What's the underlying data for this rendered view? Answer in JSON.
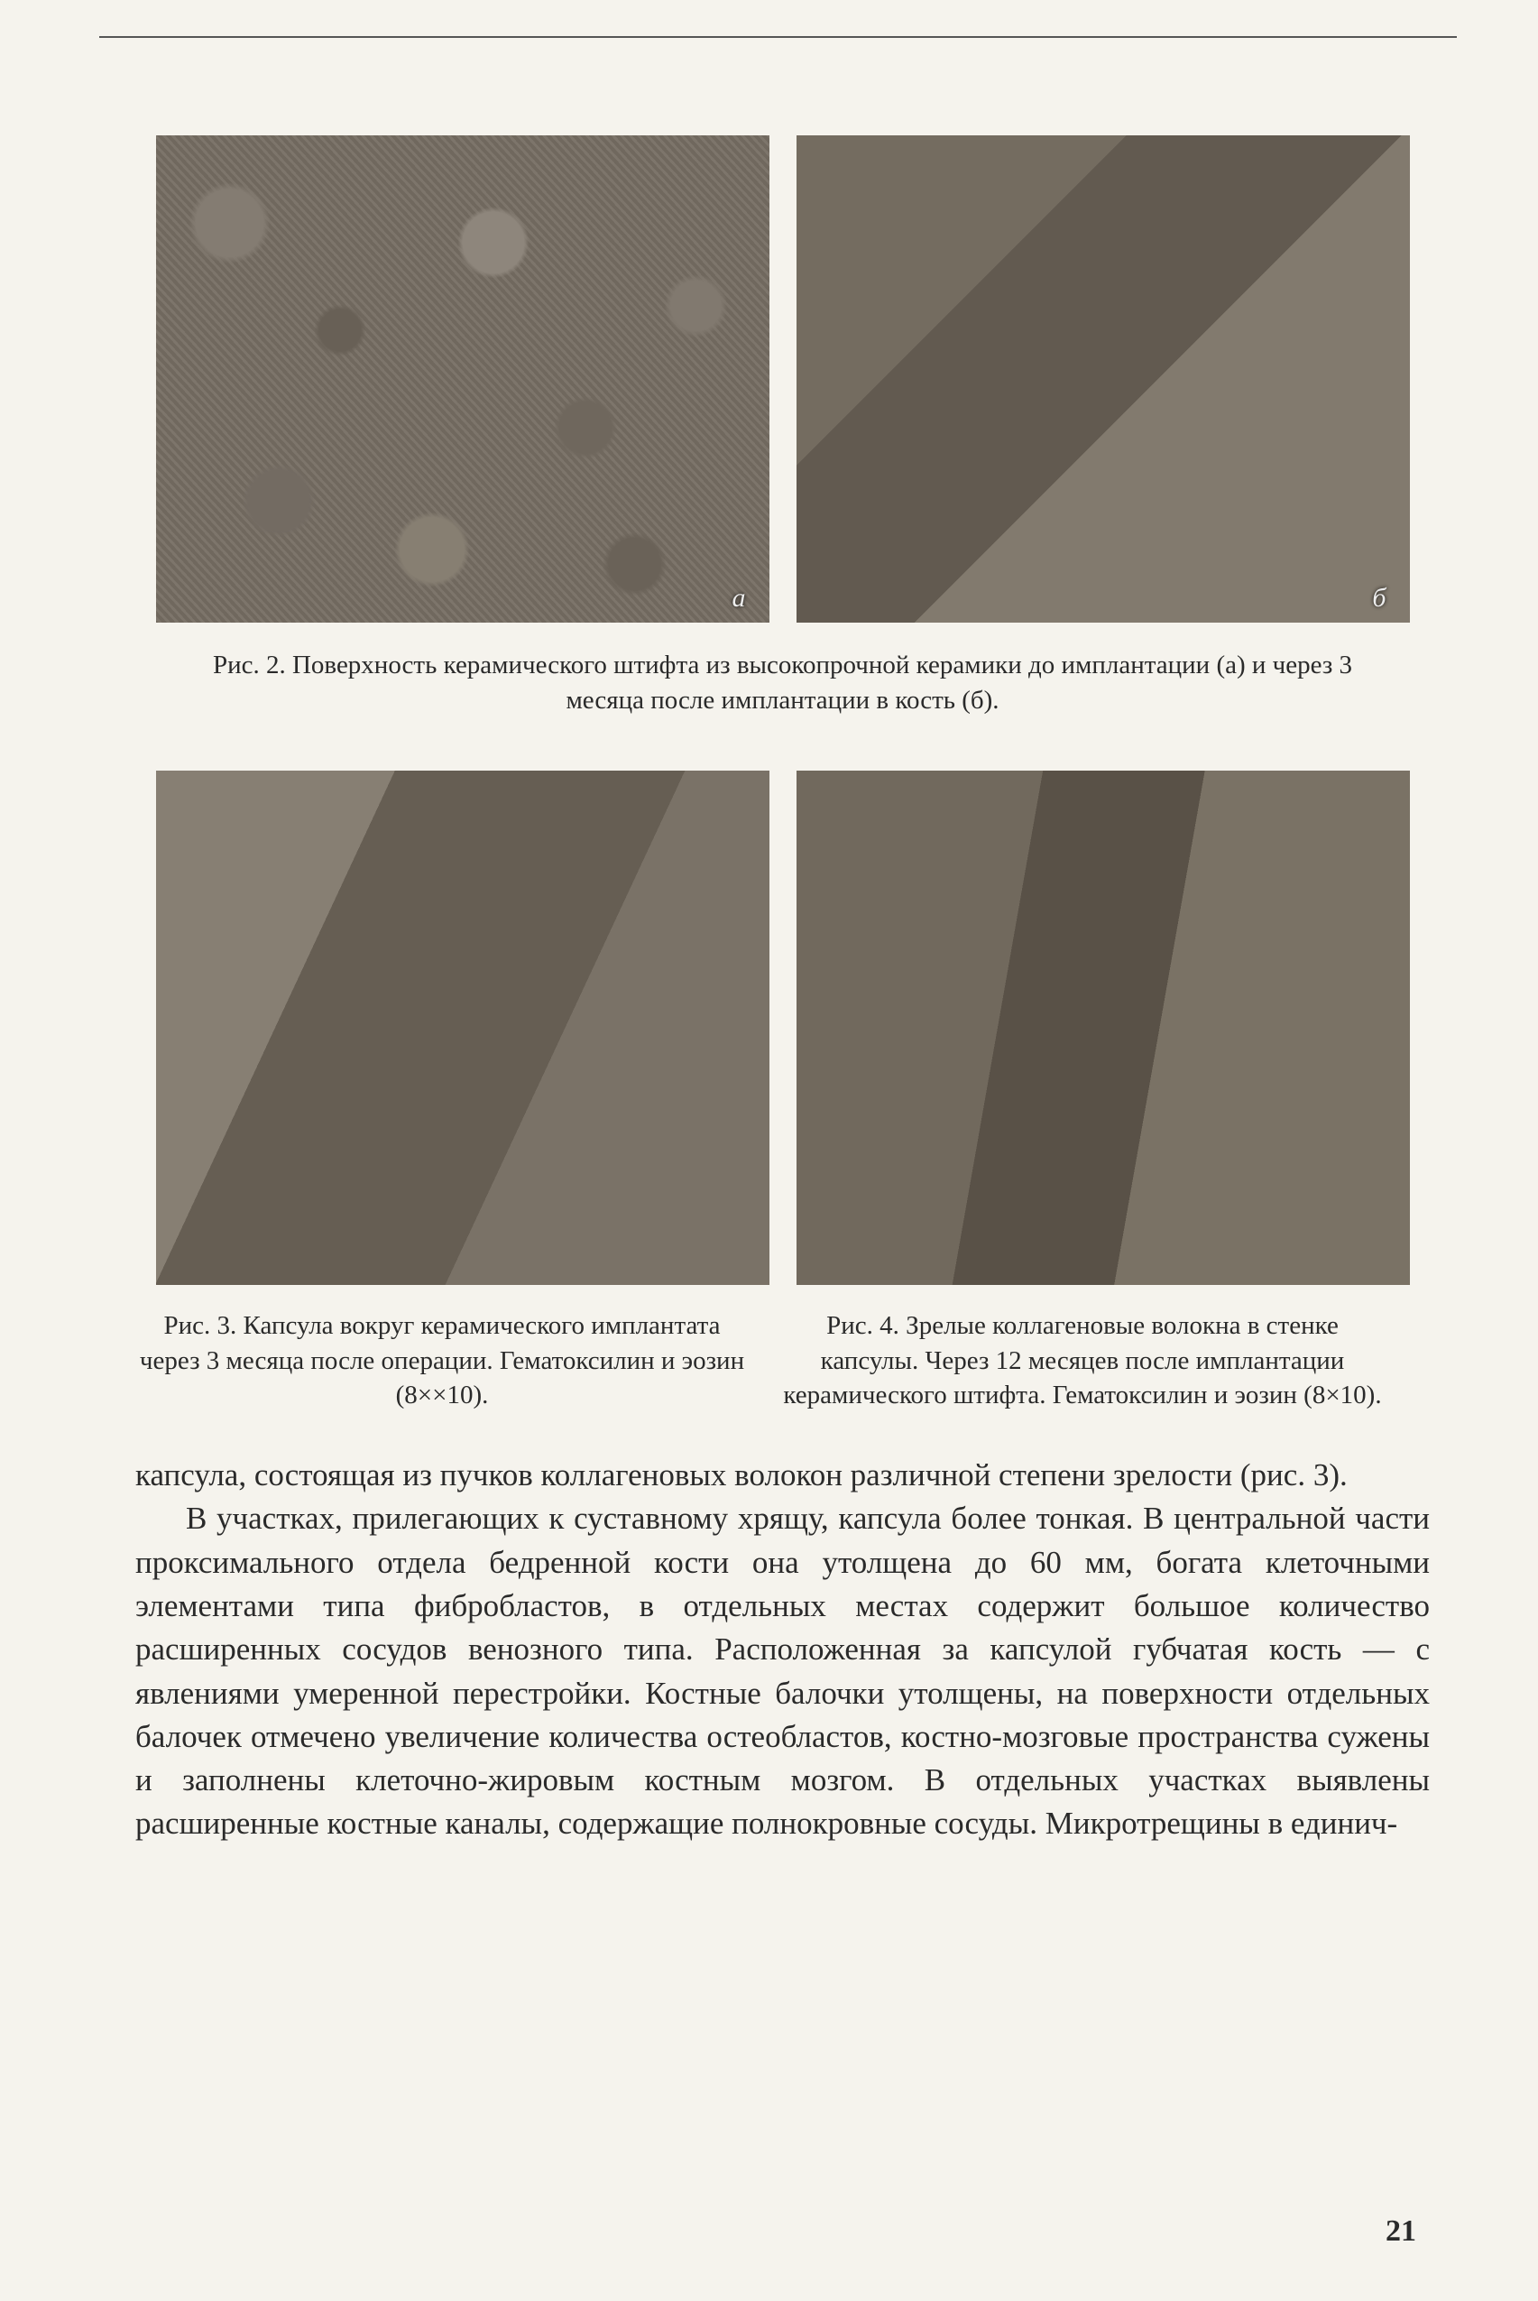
{
  "figure2": {
    "caption": "Рис. 2. Поверхность керамического штифта из высокопрочной керамики до имплантации (а) и через 3 месяца после имплантации в кость (б).",
    "label_a": "а",
    "label_b": "б"
  },
  "figure3": {
    "caption": "Рис. 3. Капсула вокруг керамического имплантата через 3 месяца после операции. Гематоксилин и эозин (8××10)."
  },
  "figure4": {
    "caption": "Рис. 4. Зрелые коллагеновые волокна в стенке капсулы. Через 12 месяцев после имплантации керамического штифта. Гематоксилин и эозин (8×10)."
  },
  "body": {
    "p1": "капсула, состоящая из пучков коллагеновых волокон различной степени зрелости (рис. 3).",
    "p2": "В участках, прилегающих к суставному хрящу, капсула более тонкая. В центральной части проксимального отдела бедренной кости она утолщена до 60 мм, богата клеточными элементами типа фибробластов, в отдельных местах содержит большое количество расширенных сосудов венозного типа. Расположенная за капсулой губчатая кость — с явлениями умеренной перестройки. Костные балочки утолщены, на поверхности отдельных балочек отмечено увеличение количества остеобластов, костно-мозговые пространства сужены и заполнены клеточно-жировым костным мозгом. В отдельных участках выявлены расширенные костные каналы, содержащие полнокровные сосуды. Микротрещины в единич-"
  },
  "page_number": "21"
}
